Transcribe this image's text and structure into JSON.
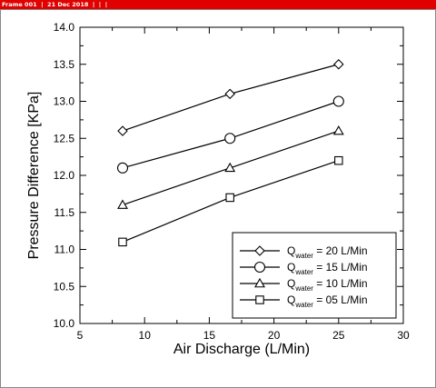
{
  "window": {
    "title_bar_text": "Frame 001  |  21 Dec 2018  |  |  |",
    "title_bar_color": "#e00000"
  },
  "chart_data": {
    "type": "line",
    "title": "",
    "xlabel": "Air Discharge (L/Min)",
    "ylabel": "Pressure Difference [KPa]",
    "xlim": [
      5,
      30
    ],
    "ylim": [
      10.0,
      14.0
    ],
    "x_ticks": [
      5,
      10,
      15,
      20,
      25,
      30
    ],
    "x_tick_labels": [
      "5",
      "10",
      "15",
      "20",
      "25",
      "30"
    ],
    "y_ticks": [
      10.0,
      10.5,
      11.0,
      11.5,
      12.0,
      12.5,
      13.0,
      13.5,
      14.0
    ],
    "y_tick_labels": [
      "10.0",
      "10.5",
      "11.0",
      "11.5",
      "12.0",
      "12.5",
      "13.0",
      "13.5",
      "14.0"
    ],
    "grid": false,
    "legend_position": "bottom-right",
    "x": [
      8.3,
      16.6,
      25
    ],
    "series": [
      {
        "name": "Q",
        "subscript": "water",
        "value_text": " = 20 L/Min",
        "marker": "diamond",
        "values": [
          12.6,
          13.1,
          13.5
        ]
      },
      {
        "name": "Q",
        "subscript": "water",
        "value_text": " = 15 L/Min",
        "marker": "circle",
        "values": [
          12.1,
          12.5,
          13.0
        ]
      },
      {
        "name": "Q",
        "subscript": "water",
        "value_text": " = 10 L/Min",
        "marker": "triangle",
        "values": [
          11.6,
          12.1,
          12.6
        ]
      },
      {
        "name": "Q",
        "subscript": "water",
        "value_text": " = 05 L/Min",
        "marker": "square",
        "values": [
          11.1,
          11.7,
          12.2
        ]
      }
    ],
    "colors": {
      "line": "#000000",
      "marker_fill": "#ffffff"
    }
  }
}
